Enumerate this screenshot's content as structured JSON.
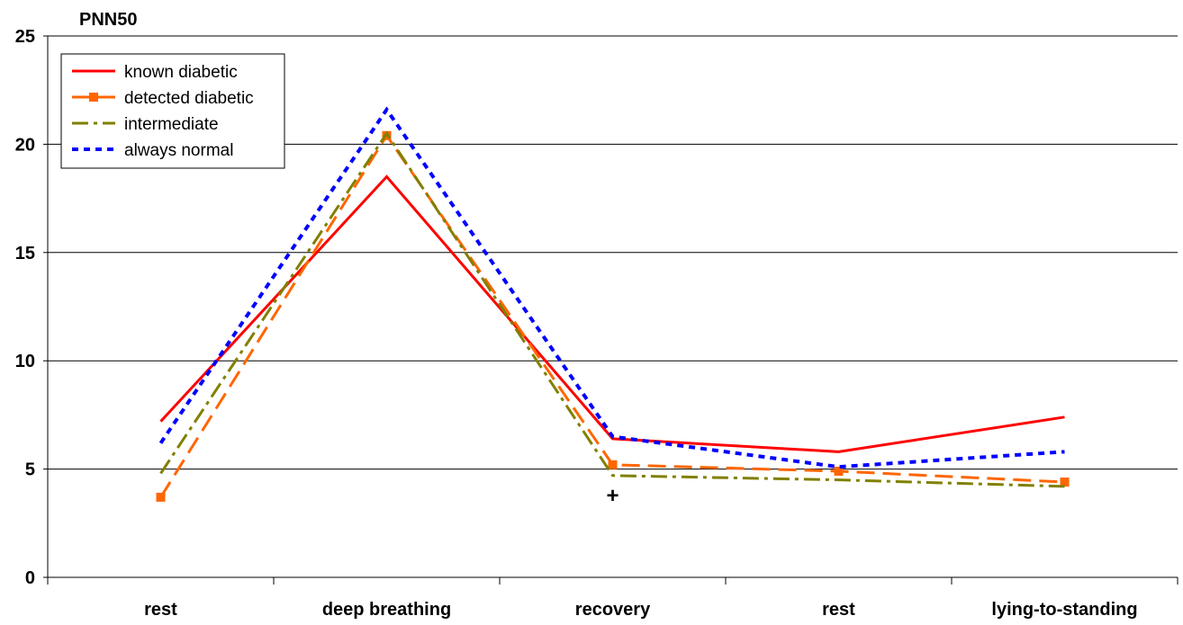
{
  "chart_data": {
    "type": "line",
    "title": "PNN50",
    "xlabel": "",
    "ylabel": "",
    "categories": [
      "rest",
      "deep breathing",
      "recovery",
      "rest",
      "lying-to-standing"
    ],
    "ylim": [
      0,
      25
    ],
    "yticks": [
      0,
      5,
      10,
      15,
      20,
      25
    ],
    "grid": true,
    "legend_position": "top-left",
    "annotation": "+",
    "annotation_category": "recovery",
    "series": [
      {
        "name": "known diabetic",
        "values": [
          7.2,
          18.5,
          6.4,
          5.8,
          7.4
        ],
        "color": "#ff0000",
        "style": "solid"
      },
      {
        "name": "detected diabetic",
        "values": [
          3.7,
          20.4,
          5.2,
          4.9,
          4.4
        ],
        "color": "#ff6600",
        "style": "dashed-square"
      },
      {
        "name": "intermediate",
        "values": [
          4.8,
          20.5,
          4.7,
          4.5,
          4.2
        ],
        "color": "#808000",
        "style": "dash-dot"
      },
      {
        "name": "always normal",
        "values": [
          6.2,
          21.6,
          6.5,
          5.1,
          5.8
        ],
        "color": "#0000ff",
        "style": "dotted"
      }
    ]
  }
}
